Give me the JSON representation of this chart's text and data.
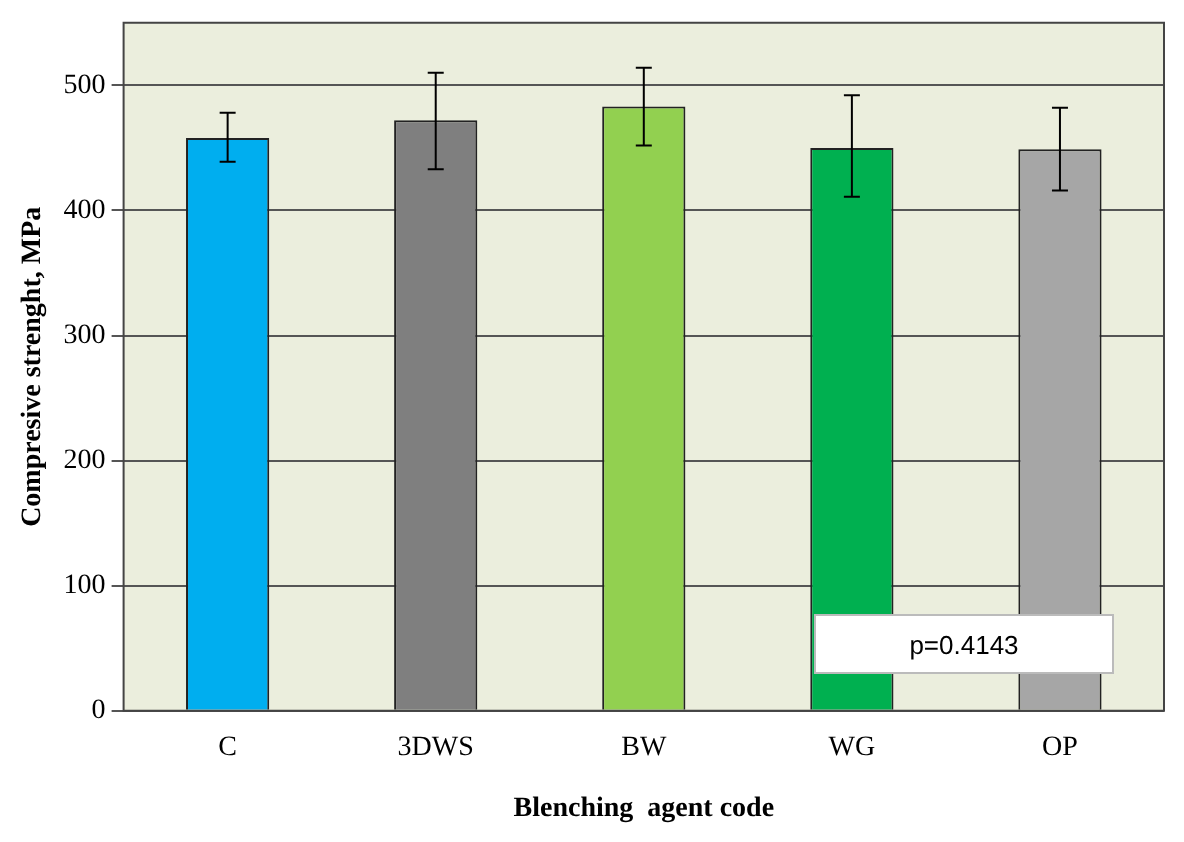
{
  "chart_data": {
    "type": "bar",
    "xlabel": "Blenching  agent code",
    "ylabel": "Compresive strenght, MPa",
    "categories": [
      "C",
      "3DWS",
      "BW",
      "WG",
      "OP"
    ],
    "values": [
      458,
      472,
      483,
      450,
      449
    ],
    "colors": [
      "#00aeef",
      "#7f7f7f",
      "#92d050",
      "#00b050",
      "#a6a6a6"
    ],
    "errors": [
      [
        439,
        478
      ],
      [
        433,
        510
      ],
      [
        452,
        514
      ],
      [
        411,
        492
      ],
      [
        416,
        482
      ]
    ],
    "ylim": [
      0,
      550
    ],
    "yticks": [
      0,
      100,
      200,
      300,
      400,
      500
    ],
    "grid": "y",
    "annotations": [
      "p=0.4143"
    ]
  }
}
